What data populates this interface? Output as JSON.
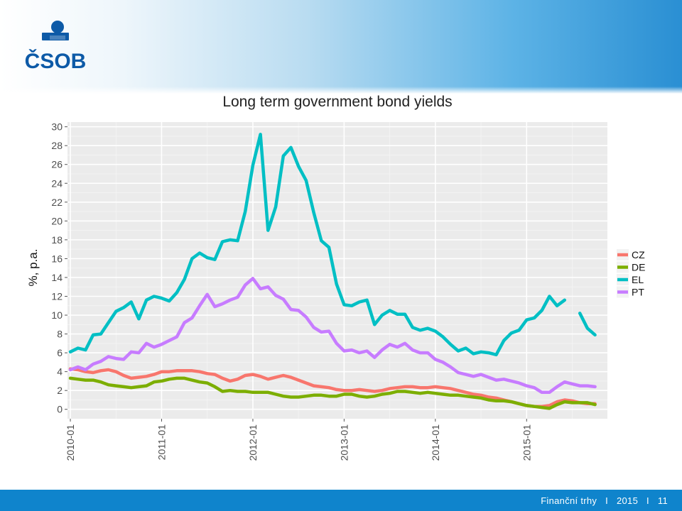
{
  "brand": {
    "logo_text": "ČSOB",
    "colors": {
      "logo_blue": "#0d5aa7",
      "footer_blue": "#0f84cc"
    }
  },
  "footer": {
    "section": "Finanční trhy",
    "separator": "I",
    "year": "2015",
    "page": "11"
  },
  "chart_data": {
    "type": "line",
    "title": "Long term government bond yields",
    "xlabel": "",
    "ylabel": "%, p.a.",
    "xlim": [
      "2009-12-20",
      "2015-11-20"
    ],
    "ylim": [
      -1,
      30.5
    ],
    "y_ticks": [
      0,
      2,
      4,
      6,
      8,
      10,
      12,
      14,
      16,
      18,
      20,
      22,
      24,
      26,
      28,
      30
    ],
    "x_ticks": [
      "2010-01",
      "2011-01",
      "2012-01",
      "2013-01",
      "2014-01",
      "2015-01"
    ],
    "grid": true,
    "legend": "right",
    "x": [
      "2010-01",
      "2010-02",
      "2010-03",
      "2010-04",
      "2010-05",
      "2010-06",
      "2010-07",
      "2010-08",
      "2010-09",
      "2010-10",
      "2010-11",
      "2010-12",
      "2011-01",
      "2011-02",
      "2011-03",
      "2011-04",
      "2011-05",
      "2011-06",
      "2011-07",
      "2011-08",
      "2011-09",
      "2011-10",
      "2011-11",
      "2011-12",
      "2012-01",
      "2012-02",
      "2012-03",
      "2012-04",
      "2012-05",
      "2012-06",
      "2012-07",
      "2012-08",
      "2012-09",
      "2012-10",
      "2012-11",
      "2012-12",
      "2013-01",
      "2013-02",
      "2013-03",
      "2013-04",
      "2013-05",
      "2013-06",
      "2013-07",
      "2013-08",
      "2013-09",
      "2013-10",
      "2013-11",
      "2013-12",
      "2014-01",
      "2014-02",
      "2014-03",
      "2014-04",
      "2014-05",
      "2014-06",
      "2014-07",
      "2014-08",
      "2014-09",
      "2014-10",
      "2014-11",
      "2014-12",
      "2015-01",
      "2015-02",
      "2015-03",
      "2015-04",
      "2015-05",
      "2015-06",
      "2015-07",
      "2015-08",
      "2015-09",
      "2015-10"
    ],
    "series": [
      {
        "name": "CZ",
        "color": "#f8766d",
        "values": [
          4.3,
          4.2,
          4.0,
          3.9,
          4.1,
          4.2,
          4.0,
          3.6,
          3.3,
          3.4,
          3.5,
          3.7,
          4.0,
          4.0,
          4.1,
          4.1,
          4.1,
          4.0,
          3.8,
          3.7,
          3.3,
          3.0,
          3.2,
          3.6,
          3.7,
          3.5,
          3.2,
          3.4,
          3.6,
          3.4,
          3.1,
          2.8,
          2.5,
          2.4,
          2.3,
          2.1,
          2.0,
          2.0,
          2.1,
          2.0,
          1.9,
          2.0,
          2.2,
          2.3,
          2.4,
          2.4,
          2.3,
          2.3,
          2.4,
          2.3,
          2.2,
          2.0,
          1.8,
          1.6,
          1.5,
          1.3,
          1.2,
          1.0,
          0.8,
          0.6,
          0.4,
          0.3,
          0.3,
          0.4,
          0.8,
          1.0,
          0.9,
          0.7,
          0.6,
          0.6
        ]
      },
      {
        "name": "DE",
        "color": "#7cae00",
        "values": [
          3.3,
          3.2,
          3.1,
          3.1,
          2.9,
          2.6,
          2.5,
          2.4,
          2.3,
          2.4,
          2.5,
          2.9,
          3.0,
          3.2,
          3.3,
          3.3,
          3.1,
          2.9,
          2.8,
          2.4,
          1.9,
          2.0,
          1.9,
          1.9,
          1.8,
          1.8,
          1.8,
          1.6,
          1.4,
          1.3,
          1.3,
          1.4,
          1.5,
          1.5,
          1.4,
          1.4,
          1.6,
          1.6,
          1.4,
          1.3,
          1.4,
          1.6,
          1.7,
          1.9,
          1.9,
          1.8,
          1.7,
          1.8,
          1.7,
          1.6,
          1.5,
          1.5,
          1.4,
          1.3,
          1.2,
          1.0,
          0.9,
          0.9,
          0.8,
          0.6,
          0.4,
          0.3,
          0.2,
          0.1,
          0.5,
          0.8,
          0.7,
          0.7,
          0.7,
          0.5
        ]
      },
      {
        "name": "EL",
        "color": "#00bfc4",
        "values": [
          6.1,
          6.5,
          6.3,
          7.9,
          8.0,
          9.2,
          10.4,
          10.8,
          11.4,
          9.6,
          11.6,
          12.0,
          11.8,
          11.5,
          12.4,
          13.8,
          16.0,
          16.6,
          16.1,
          15.9,
          17.8,
          18.0,
          17.9,
          21.0,
          25.9,
          29.2,
          19.0,
          21.5,
          26.9,
          27.8,
          25.8,
          24.3,
          20.9,
          17.9,
          17.2,
          13.3,
          11.1,
          11.0,
          11.4,
          11.6,
          9.0,
          10.0,
          10.5,
          10.1,
          10.1,
          8.7,
          8.4,
          8.6,
          8.3,
          7.7,
          6.9,
          6.2,
          6.5,
          5.9,
          6.1,
          6.0,
          5.8,
          7.3,
          8.1,
          8.4,
          9.5,
          9.7,
          10.5,
          12.0,
          11.0,
          11.6,
          null,
          10.2,
          8.6,
          7.9
        ]
      },
      {
        "name": "PT",
        "color": "#c77cff",
        "values": [
          4.2,
          4.5,
          4.2,
          4.8,
          5.1,
          5.6,
          5.4,
          5.3,
          6.1,
          6.0,
          7.0,
          6.6,
          6.9,
          7.3,
          7.7,
          9.2,
          9.7,
          11.0,
          12.2,
          10.9,
          11.2,
          11.6,
          11.9,
          13.2,
          13.9,
          12.8,
          13.0,
          12.1,
          11.7,
          10.6,
          10.5,
          9.8,
          8.7,
          8.2,
          8.3,
          7.0,
          6.2,
          6.3,
          6.0,
          6.2,
          5.5,
          6.3,
          6.9,
          6.6,
          7.0,
          6.3,
          6.0,
          6.0,
          5.3,
          5.0,
          4.5,
          3.9,
          3.7,
          3.5,
          3.7,
          3.4,
          3.1,
          3.2,
          3.0,
          2.8,
          2.5,
          2.3,
          1.8,
          1.8,
          2.4,
          2.9,
          2.7,
          2.5,
          2.5,
          2.4
        ]
      }
    ]
  }
}
